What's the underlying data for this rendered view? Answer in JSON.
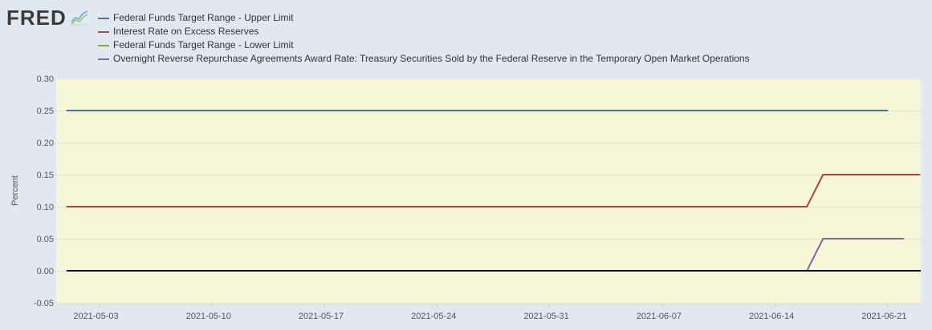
{
  "logo": {
    "text": "FRED",
    "icon": "line-chart-icon"
  },
  "chart_data": {
    "type": "line",
    "ylabel": "Percent",
    "xlim": [
      "2021-05-01",
      "2021-06-23"
    ],
    "ylim": [
      -0.05,
      0.3
    ],
    "x_ticks": [
      "2021-05-03",
      "2021-05-10",
      "2021-05-17",
      "2021-05-24",
      "2021-05-31",
      "2021-06-07",
      "2021-06-14",
      "2021-06-21"
    ],
    "y_ticks": [
      "0.30",
      "0.25",
      "0.20",
      "0.15",
      "0.10",
      "0.05",
      "0.00",
      "-0.05"
    ],
    "grid": true,
    "legend": "top-left",
    "plot_background": "#f8f6d8",
    "zero_line_color": "#000000",
    "x": [
      "2021-05-01",
      "2021-05-02",
      "2021-05-03",
      "2021-05-04",
      "2021-05-05",
      "2021-05-06",
      "2021-05-07",
      "2021-05-08",
      "2021-05-09",
      "2021-05-10",
      "2021-05-11",
      "2021-05-12",
      "2021-05-13",
      "2021-05-14",
      "2021-05-15",
      "2021-05-16",
      "2021-05-17",
      "2021-05-18",
      "2021-05-19",
      "2021-05-20",
      "2021-05-21",
      "2021-05-22",
      "2021-05-23",
      "2021-05-24",
      "2021-05-25",
      "2021-05-26",
      "2021-05-27",
      "2021-05-28",
      "2021-05-29",
      "2021-05-30",
      "2021-05-31",
      "2021-06-01",
      "2021-06-02",
      "2021-06-03",
      "2021-06-04",
      "2021-06-05",
      "2021-06-06",
      "2021-06-07",
      "2021-06-08",
      "2021-06-09",
      "2021-06-10",
      "2021-06-11",
      "2021-06-12",
      "2021-06-13",
      "2021-06-14",
      "2021-06-15",
      "2021-06-16",
      "2021-06-17",
      "2021-06-18",
      "2021-06-19",
      "2021-06-20",
      "2021-06-21",
      "2021-06-22",
      "2021-06-23"
    ],
    "series": [
      {
        "name": "Federal Funds Target Range - Upper Limit",
        "color": "#4572a7",
        "values": [
          0.25,
          0.25,
          0.25,
          0.25,
          0.25,
          0.25,
          0.25,
          0.25,
          0.25,
          0.25,
          0.25,
          0.25,
          0.25,
          0.25,
          0.25,
          0.25,
          0.25,
          0.25,
          0.25,
          0.25,
          0.25,
          0.25,
          0.25,
          0.25,
          0.25,
          0.25,
          0.25,
          0.25,
          0.25,
          0.25,
          0.25,
          0.25,
          0.25,
          0.25,
          0.25,
          0.25,
          0.25,
          0.25,
          0.25,
          0.25,
          0.25,
          0.25,
          0.25,
          0.25,
          0.25,
          0.25,
          0.25,
          0.25,
          0.25,
          0.25,
          0.25,
          0.25,
          null,
          null
        ]
      },
      {
        "name": "Interest Rate on Excess Reserves",
        "color": "#aa4643",
        "values": [
          0.1,
          0.1,
          0.1,
          0.1,
          0.1,
          0.1,
          0.1,
          0.1,
          0.1,
          0.1,
          0.1,
          0.1,
          0.1,
          0.1,
          0.1,
          0.1,
          0.1,
          0.1,
          0.1,
          0.1,
          0.1,
          0.1,
          0.1,
          0.1,
          0.1,
          0.1,
          0.1,
          0.1,
          0.1,
          0.1,
          0.1,
          0.1,
          0.1,
          0.1,
          0.1,
          0.1,
          0.1,
          0.1,
          0.1,
          0.1,
          0.1,
          0.1,
          0.1,
          0.1,
          0.1,
          0.1,
          0.1,
          0.15,
          0.15,
          0.15,
          0.15,
          0.15,
          0.15,
          0.15
        ]
      },
      {
        "name": "Federal Funds Target Range - Lower Limit",
        "color": "#89a54e",
        "values": [
          0,
          0,
          0,
          0,
          0,
          0,
          0,
          0,
          0,
          0,
          0,
          0,
          0,
          0,
          0,
          0,
          0,
          0,
          0,
          0,
          0,
          0,
          0,
          0,
          0,
          0,
          0,
          0,
          0,
          0,
          0,
          0,
          0,
          0,
          0,
          0,
          0,
          0,
          0,
          0,
          0,
          0,
          0,
          0,
          0,
          0,
          0,
          0,
          0,
          0,
          0,
          0,
          null,
          null
        ]
      },
      {
        "name": "Overnight Reverse Repurchase Agreements Award Rate: Treasury Securities Sold by the Federal Reserve in the Temporary Open Market Operations",
        "color": "#80699b",
        "values": [
          0,
          0,
          0,
          0,
          0,
          0,
          0,
          0,
          0,
          0,
          0,
          0,
          0,
          0,
          0,
          0,
          0,
          0,
          0,
          0,
          0,
          0,
          0,
          0,
          0,
          0,
          0,
          0,
          0,
          0,
          0,
          0,
          0,
          0,
          0,
          0,
          0,
          0,
          0,
          0,
          0,
          0,
          0,
          0,
          0,
          0,
          0,
          0.05,
          0.05,
          0.05,
          0.05,
          0.05,
          0.05,
          null
        ]
      }
    ]
  }
}
